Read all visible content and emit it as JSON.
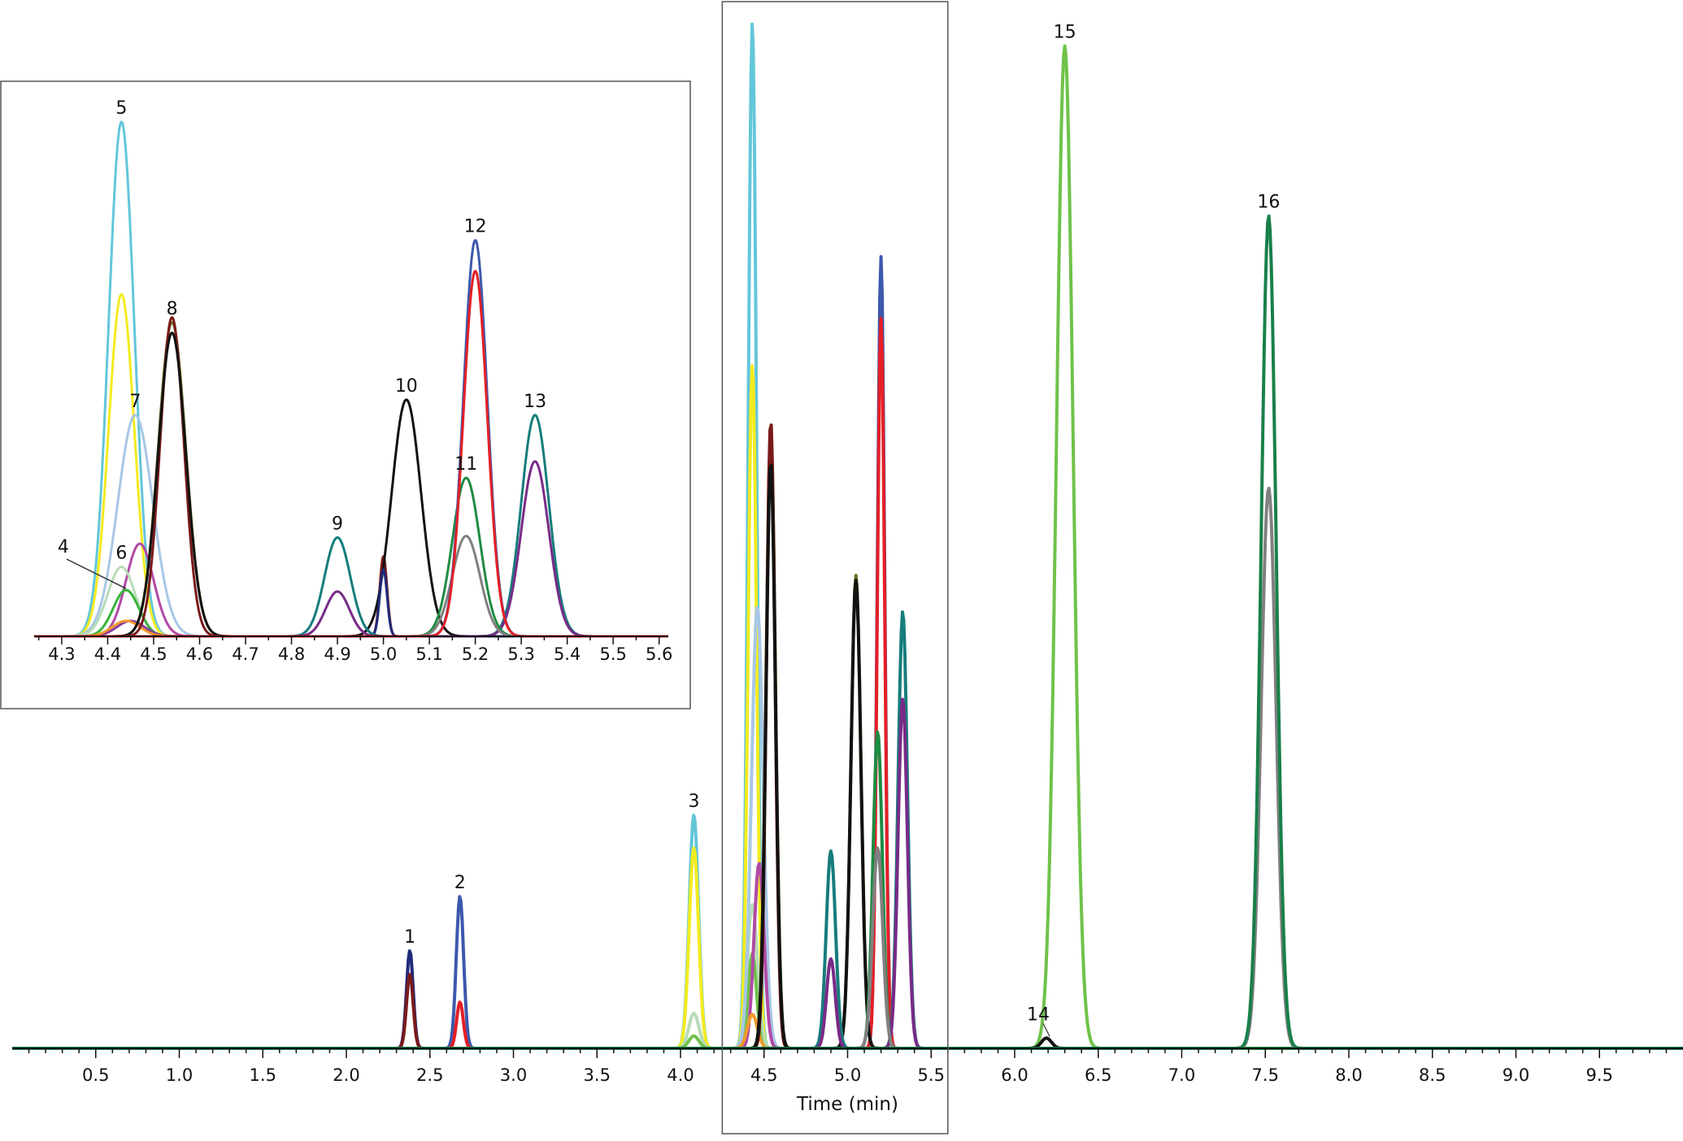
{
  "colors": {
    "cyan": "#62c6d9",
    "yellow": "#f4eb1f",
    "darkolive": "#6b6b24",
    "black": "#111111",
    "lightblue": "#a7c7e6",
    "magenta": "#b04aa5",
    "paleGreen": "#b7dcb7",
    "green": "#38b23b",
    "orange": "#f09a2a",
    "darkred": "#7a1a1a",
    "navy": "#1f2a7a",
    "teal": "#167c7c",
    "purple": "#782b87",
    "blue": "#3c58ac",
    "red": "#e41f26",
    "forestGreen": "#1f8b42",
    "gray": "#808080",
    "limeGreen": "#6fc24a",
    "violet": "#8a3c9b",
    "peach": "#f5c38e",
    "medGreen": "#2a9a4a",
    "darkGreen": "#18804a"
  },
  "chart_data": [
    {
      "id": "main",
      "type": "line",
      "title": "",
      "xlabel": "Time (min)",
      "ylabel": "",
      "xlim": [
        0,
        10.0
      ],
      "ylim": [
        0,
        1.0
      ],
      "grid": false,
      "xticks_labeled": [
        "0.5",
        "1.0",
        "1.5",
        "2.0",
        "2.5",
        "3.0",
        "3.5",
        "4.0",
        "4.5",
        "5.0",
        "5.5",
        "6.0",
        "6.5",
        "7.0",
        "7.5",
        "8.0",
        "8.5",
        "9.0",
        "9.5"
      ],
      "highlight_box_x": [
        4.25,
        5.6
      ],
      "series": [
        {
          "color": "navy",
          "peaks": [
            {
              "t": 2.38,
              "h": 0.095,
              "w": 0.02
            }
          ]
        },
        {
          "color": "darkred",
          "peaks": [
            {
              "t": 2.38,
              "h": 0.072,
              "w": 0.02
            }
          ]
        },
        {
          "color": "blue",
          "peaks": [
            {
              "t": 2.68,
              "h": 0.148,
              "w": 0.022
            },
            {
              "t": 5.2,
              "h": 0.77,
              "w": 0.022
            }
          ]
        },
        {
          "color": "red",
          "peaks": [
            {
              "t": 2.68,
              "h": 0.045,
              "w": 0.02
            },
            {
              "t": 5.2,
              "h": 0.71,
              "w": 0.022
            }
          ]
        },
        {
          "color": "cyan",
          "peaks": [
            {
              "t": 4.08,
              "h": 0.227,
              "w": 0.028
            },
            {
              "t": 4.43,
              "h": 0.998,
              "w": 0.025
            }
          ]
        },
        {
          "color": "yellow",
          "peaks": [
            {
              "t": 4.08,
              "h": 0.195,
              "w": 0.028
            },
            {
              "t": 4.43,
              "h": 0.665,
              "w": 0.025
            }
          ]
        },
        {
          "color": "paleGreen",
          "peaks": [
            {
              "t": 4.08,
              "h": 0.034,
              "w": 0.03
            },
            {
              "t": 4.43,
              "h": 0.14,
              "w": 0.03
            }
          ]
        },
        {
          "color": "limeGreen",
          "peaks": [
            {
              "t": 4.08,
              "h": 0.012,
              "w": 0.03
            },
            {
              "t": 4.43,
              "h": 0.092,
              "w": 0.025
            },
            {
              "t": 6.3,
              "h": 0.975,
              "w": 0.05
            }
          ]
        },
        {
          "color": "lightblue",
          "peaks": [
            {
              "t": 4.46,
              "h": 0.43,
              "w": 0.035
            }
          ]
        },
        {
          "color": "magenta",
          "peaks": [
            {
              "t": 4.47,
              "h": 0.18,
              "w": 0.03
            }
          ]
        },
        {
          "color": "orange",
          "peaks": [
            {
              "t": 4.43,
              "h": 0.033,
              "w": 0.03
            }
          ]
        },
        {
          "color": "darkolive",
          "peaks": [
            {
              "t": 4.54,
              "h": 0.6,
              "w": 0.028
            },
            {
              "t": 5.05,
              "h": 0.46,
              "w": 0.03
            }
          ]
        },
        {
          "color": "darkred",
          "peaks": [
            {
              "t": 4.54,
              "h": 0.61,
              "w": 0.026
            }
          ]
        },
        {
          "color": "black",
          "peaks": [
            {
              "t": 4.54,
              "h": 0.57,
              "w": 0.028
            },
            {
              "t": 5.05,
              "h": 0.455,
              "w": 0.03
            },
            {
              "t": 6.19,
              "h": 0.01,
              "w": 0.03
            }
          ]
        },
        {
          "color": "teal",
          "peaks": [
            {
              "t": 4.9,
              "h": 0.192,
              "w": 0.028
            },
            {
              "t": 5.33,
              "h": 0.425,
              "w": 0.028
            }
          ]
        },
        {
          "color": "purple",
          "peaks": [
            {
              "t": 4.9,
              "h": 0.087,
              "w": 0.026
            },
            {
              "t": 5.33,
              "h": 0.34,
              "w": 0.028
            }
          ]
        },
        {
          "color": "forestGreen",
          "peaks": [
            {
              "t": 5.18,
              "h": 0.308,
              "w": 0.028
            }
          ]
        },
        {
          "color": "gray",
          "peaks": [
            {
              "t": 5.18,
              "h": 0.195,
              "w": 0.03
            },
            {
              "t": 7.52,
              "h": 0.545,
              "w": 0.045
            }
          ]
        },
        {
          "color": "darkGreen",
          "peaks": [
            {
              "t": 7.52,
              "h": 0.81,
              "w": 0.045
            }
          ]
        }
      ],
      "peak_labels": [
        {
          "text": "1",
          "t": 2.38,
          "h": 0.095
        },
        {
          "text": "2",
          "t": 2.68,
          "h": 0.148
        },
        {
          "text": "3",
          "t": 4.08,
          "h": 0.227
        },
        {
          "text": "14",
          "t": 6.19,
          "h": 0.01
        },
        {
          "text": "15",
          "t": 6.3,
          "h": 0.975
        },
        {
          "text": "16",
          "t": 7.52,
          "h": 0.81
        }
      ]
    },
    {
      "id": "inset",
      "type": "line",
      "title": "",
      "xlabel": "",
      "ylabel": "",
      "xlim": [
        4.24,
        5.62
      ],
      "ylim": [
        0,
        1.0
      ],
      "grid": false,
      "xticks_labeled": [
        "4.3",
        "4.4",
        "4.5",
        "4.6",
        "4.7",
        "4.8",
        "4.9",
        "5.0",
        "5.1",
        "5.2",
        "5.3",
        "5.4",
        "5.5",
        "5.6"
      ],
      "series": [
        {
          "color": "cyan",
          "peaks": [
            {
              "t": 4.43,
              "h": 1.0,
              "w": 0.028
            }
          ]
        },
        {
          "color": "yellow",
          "peaks": [
            {
              "t": 4.43,
              "h": 0.665,
              "w": 0.028
            }
          ]
        },
        {
          "color": "lightblue",
          "peaks": [
            {
              "t": 4.46,
              "h": 0.43,
              "w": 0.038
            }
          ]
        },
        {
          "color": "magenta",
          "peaks": [
            {
              "t": 4.47,
              "h": 0.18,
              "w": 0.03
            }
          ]
        },
        {
          "color": "paleGreen",
          "peaks": [
            {
              "t": 4.43,
              "h": 0.135,
              "w": 0.03
            }
          ]
        },
        {
          "color": "green",
          "peaks": [
            {
              "t": 4.44,
              "h": 0.09,
              "w": 0.028
            }
          ]
        },
        {
          "color": "violet",
          "peaks": [
            {
              "t": 4.45,
              "h": 0.03,
              "w": 0.03
            }
          ]
        },
        {
          "color": "orange",
          "peaks": [
            {
              "t": 4.44,
              "h": 0.03,
              "w": 0.03
            }
          ]
        },
        {
          "color": "darkolive",
          "peaks": [
            {
              "t": 4.54,
              "h": 0.61,
              "w": 0.03
            }
          ]
        },
        {
          "color": "darkred",
          "peaks": [
            {
              "t": 4.54,
              "h": 0.62,
              "w": 0.026
            },
            {
              "t": 5.0,
              "h": 0.155,
              "w": 0.008
            }
          ]
        },
        {
          "color": "black",
          "peaks": [
            {
              "t": 4.54,
              "h": 0.59,
              "w": 0.03
            },
            {
              "t": 5.05,
              "h": 0.46,
              "w": 0.032
            }
          ]
        },
        {
          "color": "navy",
          "peaks": [
            {
              "t": 5.0,
              "h": 0.13,
              "w": 0.008
            }
          ]
        },
        {
          "color": "teal",
          "peaks": [
            {
              "t": 4.9,
              "h": 0.192,
              "w": 0.028
            },
            {
              "t": 5.33,
              "h": 0.43,
              "w": 0.03
            }
          ]
        },
        {
          "color": "purple",
          "peaks": [
            {
              "t": 4.9,
              "h": 0.087,
              "w": 0.026
            },
            {
              "t": 5.33,
              "h": 0.34,
              "w": 0.03
            }
          ]
        },
        {
          "color": "forestGreen",
          "peaks": [
            {
              "t": 5.18,
              "h": 0.308,
              "w": 0.03
            }
          ]
        },
        {
          "color": "gray",
          "peaks": [
            {
              "t": 5.18,
              "h": 0.195,
              "w": 0.03
            }
          ]
        },
        {
          "color": "blue",
          "peaks": [
            {
              "t": 5.2,
              "h": 0.77,
              "w": 0.026
            }
          ]
        },
        {
          "color": "red",
          "peaks": [
            {
              "t": 5.2,
              "h": 0.71,
              "w": 0.026
            }
          ]
        }
      ],
      "peak_labels": [
        {
          "text": "4",
          "t": 4.45,
          "h": 0.09,
          "pointer": true
        },
        {
          "text": "5",
          "t": 4.43,
          "h": 1.0
        },
        {
          "text": "6",
          "t": 4.43,
          "h": 0.135
        },
        {
          "text": "7",
          "t": 4.46,
          "h": 0.43
        },
        {
          "text": "8",
          "t": 4.54,
          "h": 0.61
        },
        {
          "text": "9",
          "t": 4.9,
          "h": 0.192
        },
        {
          "text": "10",
          "t": 5.05,
          "h": 0.46
        },
        {
          "text": "11",
          "t": 5.18,
          "h": 0.308
        },
        {
          "text": "12",
          "t": 5.2,
          "h": 0.77
        },
        {
          "text": "13",
          "t": 5.33,
          "h": 0.43
        }
      ]
    }
  ]
}
